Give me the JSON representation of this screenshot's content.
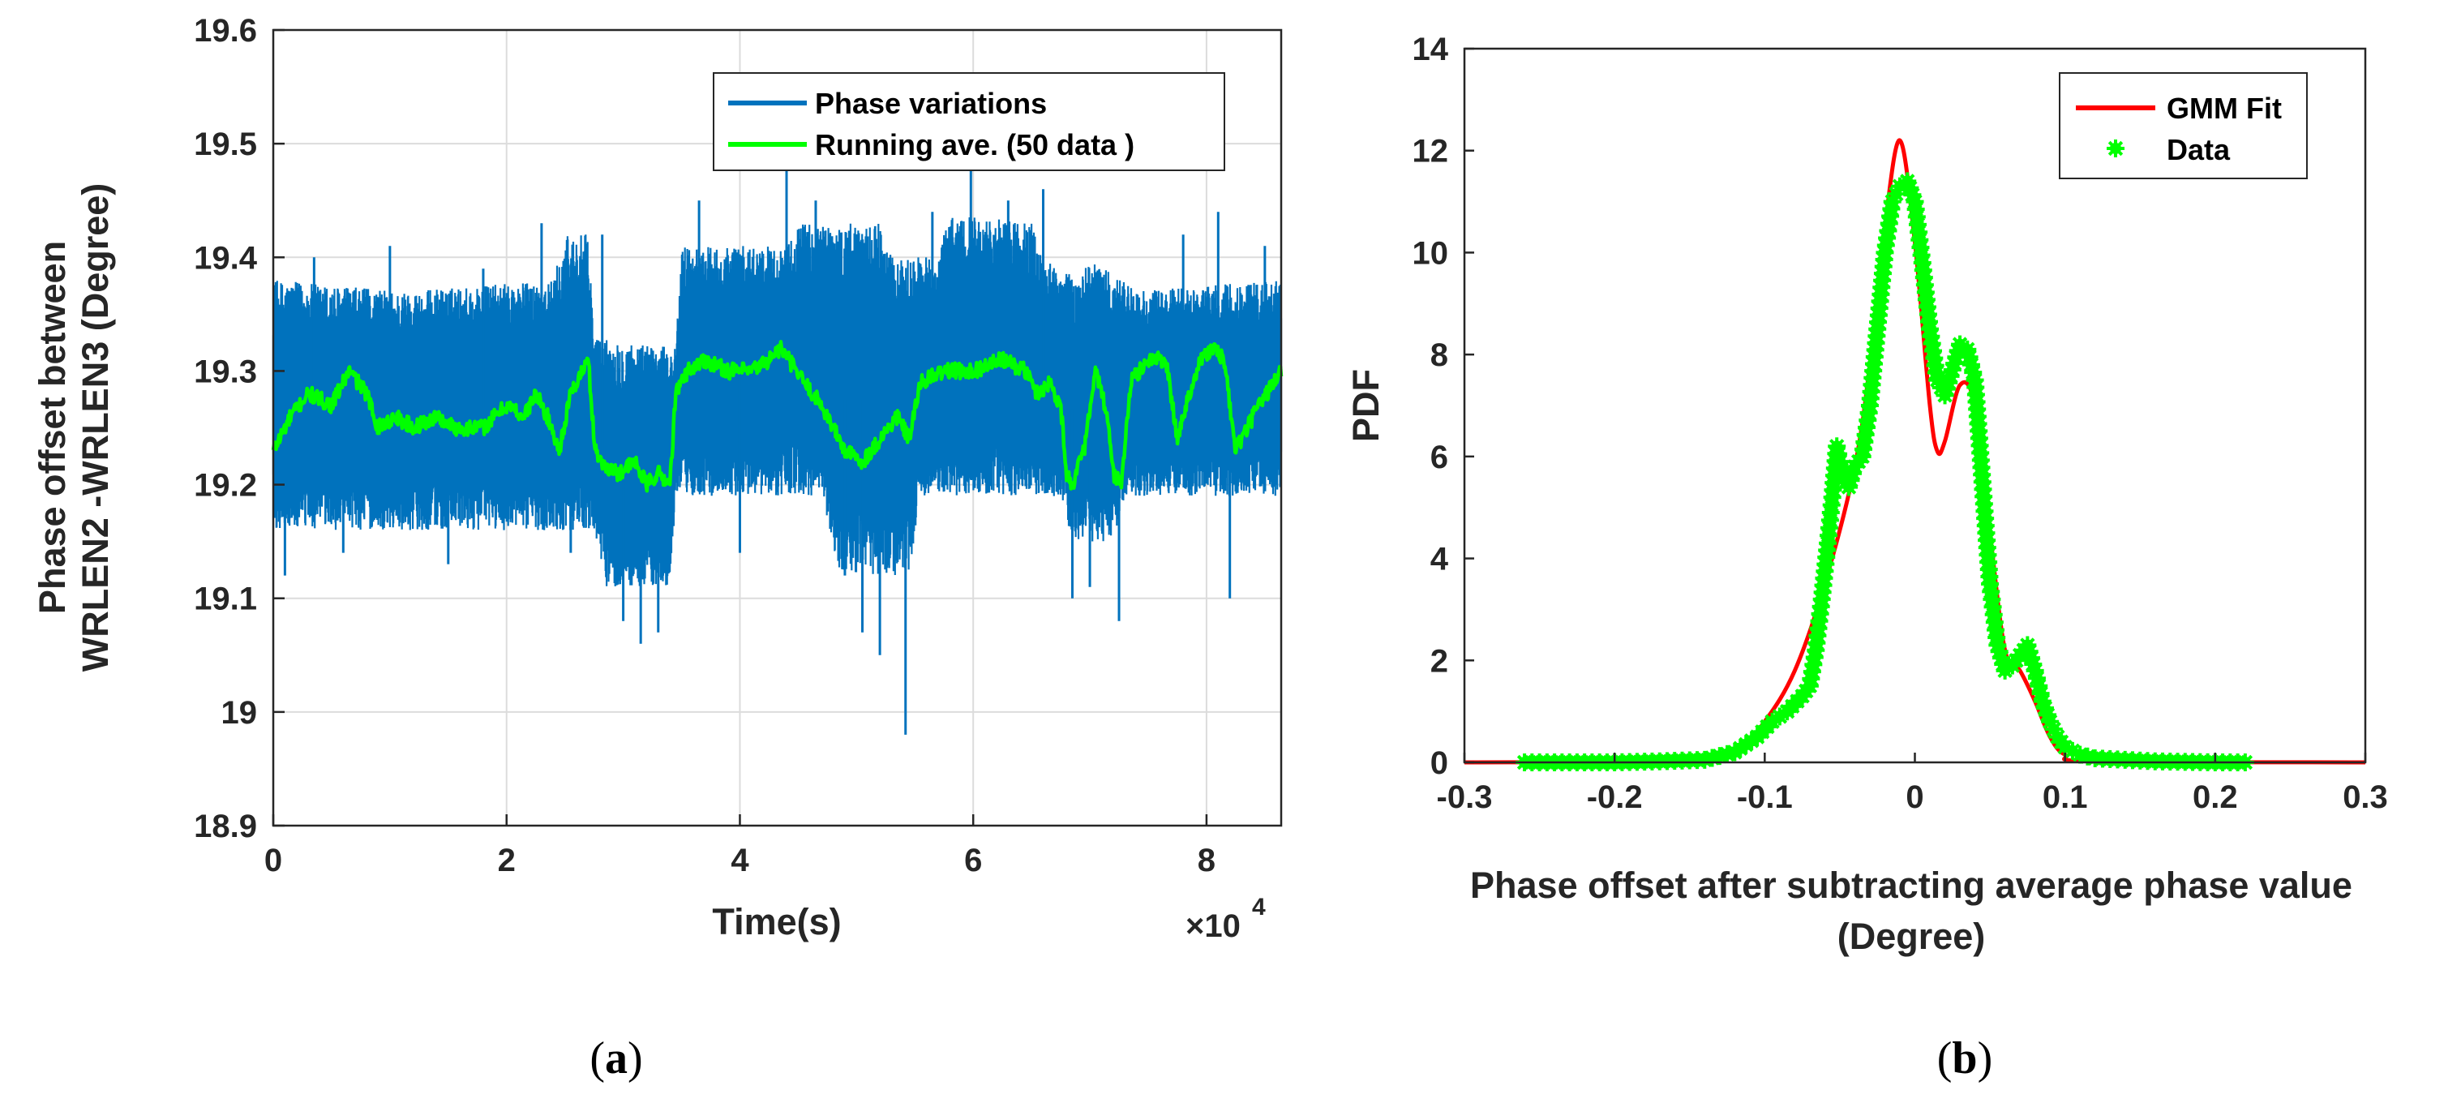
{
  "chart_data": [
    {
      "id": "a",
      "type": "line",
      "caption": {
        "open": "(",
        "letter": "a",
        "close": ")"
      },
      "xlabel": "Time(s)",
      "ylabel_lines": [
        "Phase offset between",
        "WRLEN2 -WRLEN3 (Degree)"
      ],
      "x_exponent": {
        "prefix": "×10",
        "power": "4"
      },
      "xlim": [
        0,
        86400
      ],
      "ylim": [
        18.9,
        19.6
      ],
      "x_ticks": [
        0,
        20000,
        40000,
        60000,
        80000
      ],
      "x_tick_labels": [
        "0",
        "2",
        "4",
        "6",
        "8"
      ],
      "y_ticks": [
        18.9,
        19.0,
        19.1,
        19.2,
        19.3,
        19.4,
        19.5,
        19.6
      ],
      "y_tick_labels": [
        "18.9",
        "19",
        "19.1",
        "19.2",
        "19.3",
        "19.4",
        "19.5",
        "19.6"
      ],
      "grid": true,
      "legend_position": "top-right",
      "series": [
        {
          "name": "Phase variations",
          "color": "#0072bd",
          "band_low": [
            [
              0,
              19.16
            ],
            [
              27500,
              19.16
            ],
            [
              28500,
              19.11
            ],
            [
              34000,
              19.11
            ],
            [
              34500,
              19.19
            ],
            [
              47000,
              19.19
            ],
            [
              48500,
              19.12
            ],
            [
              54500,
              19.12
            ],
            [
              55500,
              19.19
            ],
            [
              67500,
              19.19
            ],
            [
              68500,
              19.15
            ],
            [
              72000,
              19.15
            ],
            [
              73000,
              19.19
            ],
            [
              86400,
              19.19
            ]
          ],
          "band_high": [
            [
              0,
              19.38
            ],
            [
              11000,
              19.37
            ],
            [
              24000,
              19.38
            ],
            [
              25000,
              19.42
            ],
            [
              27000,
              19.42
            ],
            [
              27500,
              19.33
            ],
            [
              34500,
              19.32
            ],
            [
              35000,
              19.41
            ],
            [
              44000,
              19.41
            ],
            [
              45000,
              19.43
            ],
            [
              52000,
              19.43
            ],
            [
              53000,
              19.4
            ],
            [
              57000,
              19.4
            ],
            [
              58000,
              19.44
            ],
            [
              65000,
              19.43
            ],
            [
              66000,
              19.4
            ],
            [
              69000,
              19.38
            ],
            [
              70000,
              19.4
            ],
            [
              74000,
              19.37
            ],
            [
              86400,
              19.38
            ]
          ],
          "spikes": [
            [
              1000,
              19.12
            ],
            [
              3500,
              19.4
            ],
            [
              6000,
              19.14
            ],
            [
              10000,
              19.41
            ],
            [
              15000,
              19.13
            ],
            [
              18000,
              19.39
            ],
            [
              23000,
              19.43
            ],
            [
              25500,
              19.14
            ],
            [
              28200,
              19.42
            ],
            [
              30000,
              19.08
            ],
            [
              31500,
              19.06
            ],
            [
              33000,
              19.07
            ],
            [
              36500,
              19.45
            ],
            [
              40000,
              19.14
            ],
            [
              44000,
              19.48
            ],
            [
              46500,
              19.45
            ],
            [
              49000,
              19.12
            ],
            [
              50500,
              19.07
            ],
            [
              52000,
              19.05
            ],
            [
              54200,
              18.98
            ],
            [
              56500,
              19.44
            ],
            [
              59800,
              19.48
            ],
            [
              63000,
              19.45
            ],
            [
              66000,
              19.46
            ],
            [
              68500,
              19.1
            ],
            [
              70000,
              19.11
            ],
            [
              72500,
              19.08
            ],
            [
              78000,
              19.42
            ],
            [
              81000,
              19.44
            ],
            [
              82000,
              19.1
            ],
            [
              85000,
              19.41
            ]
          ]
        },
        {
          "name": "Running ave. (50 data )",
          "color": "#00ff00",
          "points": [
            [
              0,
              19.23
            ],
            [
              1500,
              19.26
            ],
            [
              3000,
              19.28
            ],
            [
              5000,
              19.27
            ],
            [
              6500,
              19.3
            ],
            [
              8000,
              19.28
            ],
            [
              9000,
              19.25
            ],
            [
              10500,
              19.26
            ],
            [
              12000,
              19.25
            ],
            [
              14000,
              19.26
            ],
            [
              15500,
              19.25
            ],
            [
              18000,
              19.25
            ],
            [
              20000,
              19.27
            ],
            [
              21500,
              19.26
            ],
            [
              22500,
              19.28
            ],
            [
              23500,
              19.26
            ],
            [
              24500,
              19.23
            ],
            [
              25500,
              19.28
            ],
            [
              26500,
              19.3
            ],
            [
              27000,
              19.31
            ],
            [
              27500,
              19.24
            ],
            [
              28000,
              19.22
            ],
            [
              29500,
              19.21
            ],
            [
              31000,
              19.22
            ],
            [
              32000,
              19.2
            ],
            [
              33000,
              19.21
            ],
            [
              34000,
              19.2
            ],
            [
              34500,
              19.28
            ],
            [
              35500,
              19.3
            ],
            [
              37000,
              19.31
            ],
            [
              39000,
              19.3
            ],
            [
              41000,
              19.3
            ],
            [
              42500,
              19.31
            ],
            [
              43500,
              19.32
            ],
            [
              45500,
              19.29
            ],
            [
              47000,
              19.27
            ],
            [
              48000,
              19.25
            ],
            [
              49000,
              19.23
            ],
            [
              50500,
              19.22
            ],
            [
              52000,
              19.24
            ],
            [
              53500,
              19.26
            ],
            [
              54500,
              19.24
            ],
            [
              55500,
              19.29
            ],
            [
              57500,
              19.3
            ],
            [
              60000,
              19.3
            ],
            [
              62500,
              19.31
            ],
            [
              64500,
              19.3
            ],
            [
              65500,
              19.28
            ],
            [
              66500,
              19.29
            ],
            [
              67500,
              19.27
            ],
            [
              68000,
              19.21
            ],
            [
              68500,
              19.2
            ],
            [
              69500,
              19.23
            ],
            [
              70500,
              19.3
            ],
            [
              71500,
              19.26
            ],
            [
              72000,
              19.21
            ],
            [
              72700,
              19.2
            ],
            [
              73500,
              19.29
            ],
            [
              75000,
              19.31
            ],
            [
              76500,
              19.31
            ],
            [
              77500,
              19.24
            ],
            [
              78500,
              19.28
            ],
            [
              79500,
              19.31
            ],
            [
              80500,
              19.32
            ],
            [
              81500,
              19.31
            ],
            [
              82500,
              19.23
            ],
            [
              83500,
              19.25
            ],
            [
              84500,
              19.27
            ],
            [
              86400,
              19.3
            ]
          ]
        }
      ]
    },
    {
      "id": "b",
      "type": "line",
      "caption": {
        "open": "(",
        "letter": "b",
        "close": ")"
      },
      "xlabel_lines": [
        "Phase offset after  subtracting average phase value",
        "(Degree)"
      ],
      "ylabel": "PDF",
      "xlim": [
        -0.3,
        0.3
      ],
      "ylim": [
        0,
        14
      ],
      "x_ticks": [
        -0.3,
        -0.2,
        -0.1,
        0,
        0.1,
        0.2,
        0.3
      ],
      "x_tick_labels": [
        "-0.3",
        "-0.2",
        "-0.1",
        "0",
        "0.1",
        "0.2",
        "0.3"
      ],
      "y_ticks": [
        0,
        2,
        4,
        6,
        8,
        10,
        12,
        14
      ],
      "y_tick_labels": [
        "0",
        "2",
        "4",
        "6",
        "8",
        "10",
        "12",
        "14"
      ],
      "grid": false,
      "legend_position": "top-right",
      "series": [
        {
          "name": "GMM Fit",
          "color": "#ff0000",
          "points": [
            [
              -0.3,
              0
            ],
            [
              -0.15,
              0.02
            ],
            [
              -0.12,
              0.2
            ],
            [
              -0.1,
              0.8
            ],
            [
              -0.08,
              1.8
            ],
            [
              -0.06,
              3.5
            ],
            [
              -0.04,
              5.8
            ],
            [
              -0.03,
              7.8
            ],
            [
              -0.02,
              10.5
            ],
            [
              -0.01,
              12.2
            ],
            [
              0,
              10.2
            ],
            [
              0.01,
              7.0
            ],
            [
              0.015,
              6.1
            ],
            [
              0.02,
              6.3
            ],
            [
              0.03,
              7.4
            ],
            [
              0.04,
              7.0
            ],
            [
              0.05,
              4.5
            ],
            [
              0.06,
              2.2
            ],
            [
              0.07,
              1.8
            ],
            [
              0.08,
              1.2
            ],
            [
              0.09,
              0.5
            ],
            [
              0.1,
              0.15
            ],
            [
              0.12,
              0.02
            ],
            [
              0.3,
              0
            ]
          ]
        },
        {
          "name": "Data",
          "color": "#00ff00",
          "points": [
            [
              -0.26,
              0
            ],
            [
              -0.23,
              0
            ],
            [
              -0.2,
              0
            ],
            [
              -0.17,
              0.02
            ],
            [
              -0.14,
              0.05
            ],
            [
              -0.12,
              0.2
            ],
            [
              -0.105,
              0.5
            ],
            [
              -0.095,
              0.8
            ],
            [
              -0.085,
              1.0
            ],
            [
              -0.075,
              1.3
            ],
            [
              -0.07,
              1.5
            ],
            [
              -0.066,
              2.2
            ],
            [
              -0.062,
              3.2
            ],
            [
              -0.058,
              4.3
            ],
            [
              -0.055,
              5.2
            ],
            [
              -0.052,
              6.2
            ],
            [
              -0.048,
              5.6
            ],
            [
              -0.044,
              5.4
            ],
            [
              -0.04,
              5.8
            ],
            [
              -0.035,
              6.0
            ],
            [
              -0.03,
              7.0
            ],
            [
              -0.025,
              8.5
            ],
            [
              -0.02,
              10.0
            ],
            [
              -0.015,
              11.0
            ],
            [
              -0.01,
              11.3
            ],
            [
              -0.005,
              11.4
            ],
            [
              0,
              11.0
            ],
            [
              0.005,
              9.8
            ],
            [
              0.01,
              8.5
            ],
            [
              0.015,
              7.5
            ],
            [
              0.02,
              7.2
            ],
            [
              0.025,
              7.7
            ],
            [
              0.03,
              8.2
            ],
            [
              0.035,
              8.1
            ],
            [
              0.04,
              7.5
            ],
            [
              0.045,
              5.5
            ],
            [
              0.05,
              3.5
            ],
            [
              0.055,
              2.3
            ],
            [
              0.06,
              1.8
            ],
            [
              0.065,
              1.9
            ],
            [
              0.07,
              2.1
            ],
            [
              0.075,
              2.3
            ],
            [
              0.08,
              1.8
            ],
            [
              0.085,
              1.2
            ],
            [
              0.09,
              0.8
            ],
            [
              0.095,
              0.5
            ],
            [
              0.1,
              0.3
            ],
            [
              0.11,
              0.15
            ],
            [
              0.12,
              0.08
            ],
            [
              0.14,
              0.05
            ],
            [
              0.16,
              0.02
            ],
            [
              0.18,
              0.01
            ],
            [
              0.2,
              0
            ],
            [
              0.22,
              0
            ]
          ]
        }
      ]
    }
  ]
}
